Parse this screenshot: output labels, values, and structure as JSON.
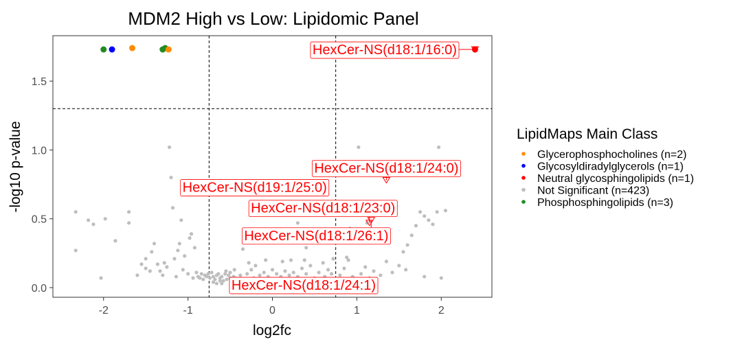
{
  "chart_data": {
    "type": "scatter",
    "title": "MDM2 High vs Low: Lipidomic Panel",
    "xlabel": "log2fc",
    "ylabel": "-log10 p-value",
    "xlim": [
      -2.6,
      2.6
    ],
    "ylim": [
      -0.07,
      1.83
    ],
    "x_ticks": [
      -2,
      -1,
      0,
      1,
      2
    ],
    "y_ticks": [
      0.0,
      0.5,
      1.0,
      1.5
    ],
    "y_tick_labels": [
      "0.0",
      "0.5",
      "1.0",
      "1.5"
    ],
    "grid": false,
    "threshold_lines": {
      "vertical": [
        -0.75,
        0.75
      ],
      "horizontal": [
        1.3
      ]
    },
    "legend": {
      "title": "LipidMaps Main Class",
      "position": "right",
      "entries": [
        {
          "label": "Glycerophosphocholines (n=2)",
          "color": "#FF8C00"
        },
        {
          "label": "Glycosyldiradylglycerols (n=1)",
          "color": "#0000FF"
        },
        {
          "label": "Neutral glycosphingolipids (n=1)",
          "color": "#FF0000"
        },
        {
          "label": "Not Significant (n=423)",
          "color": "#BEBEBE"
        },
        {
          "label": "Phosphosphingolipids (n=3)",
          "color": "#228B22"
        }
      ]
    },
    "significant_points": [
      {
        "x": -2.0,
        "y": 1.73,
        "color": "#228B22"
      },
      {
        "x": -1.9,
        "y": 1.73,
        "color": "#0000FF"
      },
      {
        "x": -1.66,
        "y": 1.74,
        "color": "#FF8C00"
      },
      {
        "x": -1.3,
        "y": 1.73,
        "color": "#228B22"
      },
      {
        "x": -1.27,
        "y": 1.74,
        "color": "#228B22"
      },
      {
        "x": -1.23,
        "y": 1.73,
        "color": "#FF8C00"
      },
      {
        "x": 2.4,
        "y": 1.73,
        "color": "#FF0000"
      }
    ],
    "ns_points": [
      [
        -2.33,
        0.55
      ],
      [
        -2.33,
        0.27
      ],
      [
        -2.18,
        0.49
      ],
      [
        -2.12,
        0.46
      ],
      [
        -2.03,
        0.07
      ],
      [
        -1.98,
        0.5
      ],
      [
        -1.86,
        0.34
      ],
      [
        -1.7,
        0.55
      ],
      [
        -1.7,
        0.47
      ],
      [
        -1.6,
        0.09
      ],
      [
        -1.55,
        0.17
      ],
      [
        -1.5,
        0.21
      ],
      [
        -1.5,
        0.14
      ],
      [
        -1.45,
        0.12
      ],
      [
        -1.43,
        0.26
      ],
      [
        -1.4,
        0.32
      ],
      [
        -1.36,
        0.17
      ],
      [
        -1.33,
        0.12
      ],
      [
        -1.3,
        0.09
      ],
      [
        -1.28,
        0.18
      ],
      [
        -1.25,
        0.15
      ],
      [
        -1.22,
        1.02
      ],
      [
        -1.2,
        0.8
      ],
      [
        -1.18,
        0.58
      ],
      [
        -1.16,
        0.21
      ],
      [
        -1.14,
        0.08
      ],
      [
        -1.12,
        0.27
      ],
      [
        -1.1,
        0.32
      ],
      [
        -1.08,
        0.49
      ],
      [
        -1.06,
        0.13
      ],
      [
        -1.04,
        0.23
      ],
      [
        -1.0,
        0.1
      ],
      [
        -0.98,
        0.36
      ],
      [
        -0.96,
        0.39
      ],
      [
        -0.94,
        0.07
      ],
      [
        -0.92,
        0.29
      ],
      [
        -0.9,
        0.11
      ],
      [
        -0.88,
        0.08
      ],
      [
        -0.86,
        0.07
      ],
      [
        -0.84,
        0.1
      ],
      [
        -0.82,
        0.06
      ],
      [
        -0.8,
        0.09
      ],
      [
        -0.78,
        0.08
      ],
      [
        -0.76,
        0.1
      ],
      [
        -0.74,
        0.07
      ],
      [
        -0.72,
        0.11
      ],
      [
        -0.7,
        0.08
      ],
      [
        -0.68,
        0.06
      ],
      [
        -0.66,
        0.09
      ],
      [
        -0.64,
        0.1
      ],
      [
        -0.62,
        0.07
      ],
      [
        -0.6,
        0.08
      ],
      [
        -0.58,
        0.05
      ],
      [
        -0.56,
        0.1
      ],
      [
        -0.54,
        0.06
      ],
      [
        -0.52,
        0.09
      ],
      [
        -0.5,
        0.07
      ],
      [
        -0.48,
        0.04
      ],
      [
        -0.46,
        0.08
      ],
      [
        -0.44,
        0.07
      ],
      [
        -0.7,
        0.04
      ],
      [
        -0.66,
        0.03
      ],
      [
        -0.62,
        0.05
      ],
      [
        -0.6,
        0.03
      ],
      [
        -0.55,
        0.12
      ],
      [
        -0.5,
        0.11
      ],
      [
        -0.45,
        0.13
      ],
      [
        -0.42,
        0.05
      ],
      [
        -0.38,
        0.09
      ],
      [
        -0.35,
        0.06
      ],
      [
        -0.3,
        0.1
      ],
      [
        -0.28,
        0.18
      ],
      [
        -0.25,
        0.13
      ],
      [
        -0.22,
        0.07
      ],
      [
        -0.2,
        0.16
      ],
      [
        -0.15,
        0.09
      ],
      [
        -0.1,
        0.11
      ],
      [
        -0.08,
        0.2
      ],
      [
        -0.05,
        0.08
      ],
      [
        0.0,
        0.13
      ],
      [
        0.05,
        0.1
      ],
      [
        0.1,
        0.08
      ],
      [
        0.12,
        0.19
      ],
      [
        0.15,
        0.12
      ],
      [
        0.2,
        0.09
      ],
      [
        0.22,
        0.2
      ],
      [
        0.25,
        0.11
      ],
      [
        0.3,
        0.08
      ],
      [
        0.35,
        0.14
      ],
      [
        0.38,
        0.2
      ],
      [
        0.4,
        0.1
      ],
      [
        0.45,
        0.16
      ],
      [
        0.5,
        0.07
      ],
      [
        0.55,
        0.11
      ],
      [
        0.6,
        0.18
      ],
      [
        0.62,
        0.08
      ],
      [
        0.66,
        0.13
      ],
      [
        0.7,
        0.1
      ],
      [
        0.72,
        0.21
      ],
      [
        0.8,
        0.09
      ],
      [
        0.85,
        0.14
      ],
      [
        0.9,
        0.2
      ],
      [
        0.95,
        0.08
      ],
      [
        1.05,
        0.1
      ],
      [
        1.1,
        0.15
      ],
      [
        1.15,
        0.07
      ],
      [
        1.2,
        0.12
      ],
      [
        1.28,
        0.09
      ],
      [
        1.35,
        0.19
      ],
      [
        1.42,
        0.11
      ],
      [
        1.5,
        0.16
      ],
      [
        1.55,
        0.26
      ],
      [
        1.6,
        0.31
      ],
      [
        1.65,
        0.38
      ],
      [
        1.7,
        0.45
      ],
      [
        1.75,
        0.55
      ],
      [
        1.8,
        0.52
      ],
      [
        1.85,
        0.49
      ],
      [
        1.9,
        0.46
      ],
      [
        1.95,
        0.55
      ],
      [
        2.05,
        0.56
      ],
      [
        1.8,
        0.08
      ],
      [
        2.0,
        0.07
      ],
      [
        1.58,
        0.13
      ],
      [
        1.02,
        1.02
      ],
      [
        1.97,
        1.02
      ],
      [
        0.3,
        0.47
      ],
      [
        0.4,
        0.29
      ],
      [
        0.35,
        0.36
      ],
      [
        0.88,
        0.22
      ],
      [
        0.92,
        0.43
      ],
      [
        1.12,
        0.47
      ],
      [
        -0.35,
        0.28
      ],
      [
        -0.2,
        0.34
      ],
      [
        0.1,
        0.33
      ]
    ],
    "annotations": [
      {
        "label": "HexCer-NS(d18:1/16:0)",
        "x": 2.4,
        "y": 1.73,
        "label_x": 1.33,
        "label_y": 1.73
      },
      {
        "label": "HexCer-NS(d18:1/24:0)",
        "x": 1.35,
        "y": 0.78,
        "label_x": 1.35,
        "label_y": 0.87
      },
      {
        "label": "HexCer-NS(d19:1/25:0)",
        "x": 0.52,
        "y": 0.71,
        "label_x": -0.21,
        "label_y": 0.73
      },
      {
        "label": "HexCer-NS(d18:1/23:0)",
        "x": 1.15,
        "y": 0.47,
        "label_x": 0.6,
        "label_y": 0.58
      },
      {
        "label": "HexCer-NS(d18:1/26:1)",
        "x": 1.17,
        "y": 0.49,
        "label_x": 0.52,
        "label_y": 0.38
      },
      {
        "label": "HexCer-NS(d18:1/24:1)",
        "x": 0.6,
        "y": 0.03,
        "label_x": 0.37,
        "label_y": 0.02
      }
    ]
  }
}
